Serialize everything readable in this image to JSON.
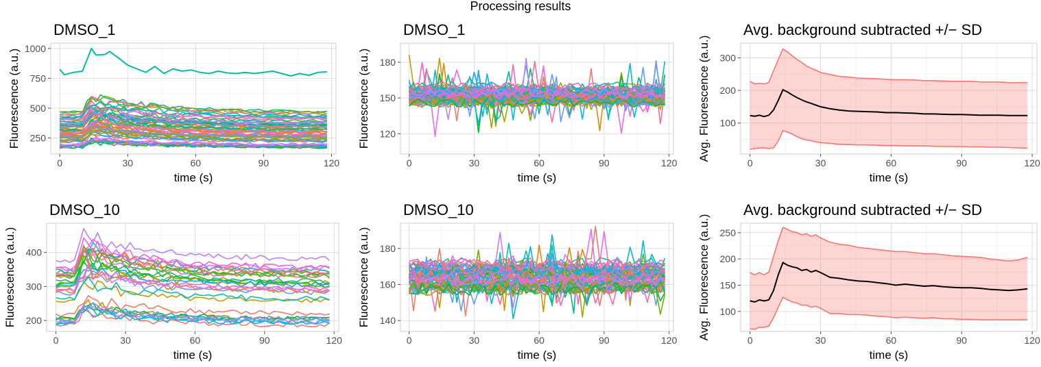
{
  "figure": {
    "title": "Processing results"
  },
  "chart_data": [
    {
      "id": "p1",
      "type": "line",
      "title": "DMSO_1",
      "xlabel": "time (s)",
      "ylabel": "Fluorescence (a.u.)",
      "xlim": [
        -4,
        122
      ],
      "ylim": [
        115,
        1045
      ],
      "xticks": [
        0,
        30,
        60,
        90,
        120
      ],
      "yticks": [
        250,
        500,
        750,
        1000
      ],
      "grid": true,
      "notes_series": "many per-cell traces (~60), colorful hue palette",
      "traces_gen": {
        "n": 60,
        "t_max": 118,
        "dt": 2,
        "base_min": 170,
        "base_max": 470,
        "spike_at": 14,
        "spike_frac": 0.35,
        "noise": 10,
        "seed": 11
      },
      "highlight_series": {
        "name": "",
        "color": "#00BFA0",
        "x": [
          0,
          2,
          6,
          10,
          14,
          16,
          20,
          22,
          26,
          30,
          34,
          38,
          42,
          46,
          50,
          54,
          58,
          62,
          66,
          70,
          74,
          78,
          82,
          86,
          90,
          94,
          98,
          102,
          106,
          110,
          114,
          118
        ],
        "y": [
          825,
          780,
          800,
          810,
          1000,
          945,
          950,
          975,
          920,
          860,
          830,
          800,
          850,
          790,
          830,
          810,
          820,
          800,
          790,
          810,
          795,
          790,
          800,
          790,
          800,
          810,
          790,
          770,
          790,
          775,
          800,
          805
        ]
      }
    },
    {
      "id": "p2",
      "type": "line",
      "title": "DMSO_1",
      "xlabel": "time (s)",
      "ylabel": "Fluorescence (a.u.)",
      "xlim": [
        -4,
        122
      ],
      "ylim": [
        103,
        196
      ],
      "xticks": [
        0,
        30,
        60,
        90,
        120
      ],
      "yticks": [
        120,
        150,
        180
      ],
      "grid": true,
      "notes_series": "background traces (~60) flat around 150 with noise",
      "traces_gen": {
        "n": 60,
        "t_max": 118,
        "dt": 2,
        "base_min": 146,
        "base_max": 160,
        "spike_at": -1,
        "spike_frac": 0,
        "noise": 4,
        "outlier_prob": 0.04,
        "outlier_amp": 28,
        "seed": 23
      }
    },
    {
      "id": "p3",
      "type": "area",
      "title": "Avg. background subtracted +/− SD",
      "xlabel": "time (s)",
      "ylabel": "Avg. Fluorescence (a.u.)",
      "xlim": [
        -4,
        122
      ],
      "ylim": [
        5,
        345
      ],
      "xticks": [
        0,
        30,
        60,
        90,
        120
      ],
      "yticks": [
        100,
        200,
        300
      ],
      "grid": true,
      "band_fill": "#F8766D",
      "line_color": "#000000",
      "x": [
        0,
        2,
        4,
        6,
        8,
        10,
        12,
        14,
        16,
        18,
        20,
        22,
        24,
        26,
        28,
        30,
        34,
        38,
        42,
        46,
        50,
        54,
        58,
        62,
        66,
        70,
        74,
        78,
        82,
        86,
        90,
        94,
        98,
        102,
        106,
        110,
        114,
        118
      ],
      "mean": [
        123,
        121,
        124,
        120,
        124,
        140,
        170,
        202,
        195,
        186,
        178,
        171,
        165,
        160,
        155,
        150,
        144,
        140,
        137,
        136,
        135,
        134,
        132,
        132,
        131,
        130,
        128,
        128,
        127,
        126,
        126,
        125,
        124,
        124,
        124,
        123,
        123,
        123
      ],
      "upper": [
        228,
        220,
        222,
        220,
        225,
        260,
        295,
        327,
        318,
        306,
        295,
        286,
        275,
        268,
        262,
        255,
        249,
        243,
        241,
        238,
        237,
        236,
        234,
        233,
        233,
        232,
        230,
        230,
        229,
        228,
        228,
        228,
        226,
        226,
        226,
        224,
        224,
        224
      ],
      "lower": [
        20,
        22,
        24,
        24,
        22,
        24,
        45,
        77,
        72,
        66,
        58,
        52,
        48,
        46,
        42,
        40,
        38,
        35,
        34,
        33,
        33,
        32,
        31,
        31,
        30,
        30,
        30,
        29,
        28,
        28,
        28,
        27,
        27,
        26,
        26,
        25,
        24,
        23
      ]
    },
    {
      "id": "p4",
      "type": "line",
      "title": "DMSO_10",
      "xlabel": "time (s)",
      "ylabel": "Fluorescence (a.u.)",
      "xlim": [
        -4,
        122
      ],
      "ylim": [
        168,
        486
      ],
      "xticks": [
        0,
        30,
        60,
        90,
        120
      ],
      "yticks": [
        200,
        300,
        400
      ],
      "grid": true,
      "notes_series": "per-cell traces (~30)",
      "traces_gen": {
        "n": 30,
        "t_max": 118,
        "dt": 2,
        "base_min": 185,
        "base_max": 385,
        "spike_at": 12,
        "spike_frac": 0.25,
        "noise": 7,
        "seed": 47
      }
    },
    {
      "id": "p5",
      "type": "line",
      "title": "DMSO_10",
      "xlabel": "time (s)",
      "ylabel": "Fluorescence (a.u.)",
      "xlim": [
        -4,
        122
      ],
      "ylim": [
        134,
        194
      ],
      "xticks": [
        0,
        30,
        60,
        90,
        120
      ],
      "yticks": [
        140,
        160,
        180
      ],
      "grid": true,
      "notes_series": "background traces (~60) flat around 165 with noise",
      "traces_gen": {
        "n": 60,
        "t_max": 118,
        "dt": 2,
        "base_min": 157,
        "base_max": 172,
        "spike_at": -1,
        "spike_frac": 0,
        "noise": 3.5,
        "outlier_prob": 0.05,
        "outlier_amp": 20,
        "seed": 71
      }
    },
    {
      "id": "p6",
      "type": "area",
      "title": "Avg. background subtracted +/− SD",
      "xlabel": "time (s)",
      "ylabel": "Avg. Fluorescence (a.u.)",
      "xlim": [
        -4,
        122
      ],
      "ylim": [
        62,
        268
      ],
      "xticks": [
        0,
        30,
        60,
        90,
        120
      ],
      "yticks": [
        100,
        150,
        200,
        250
      ],
      "grid": true,
      "band_fill": "#F8766D",
      "line_color": "#000000",
      "x": [
        0,
        2,
        4,
        6,
        8,
        10,
        12,
        14,
        16,
        18,
        20,
        22,
        24,
        26,
        28,
        30,
        34,
        38,
        42,
        46,
        50,
        54,
        58,
        62,
        66,
        70,
        74,
        78,
        82,
        86,
        90,
        94,
        98,
        102,
        106,
        110,
        114,
        118
      ],
      "mean": [
        120,
        118,
        122,
        120,
        122,
        140,
        170,
        193,
        188,
        185,
        183,
        178,
        180,
        175,
        178,
        174,
        165,
        163,
        160,
        158,
        157,
        155,
        153,
        150,
        152,
        150,
        148,
        149,
        147,
        146,
        145,
        145,
        144,
        142,
        141,
        140,
        141,
        143
      ],
      "upper": [
        174,
        170,
        174,
        170,
        175,
        205,
        235,
        260,
        256,
        252,
        250,
        246,
        248,
        243,
        246,
        240,
        232,
        228,
        226,
        222,
        220,
        218,
        216,
        214,
        214,
        212,
        210,
        210,
        208,
        206,
        205,
        204,
        203,
        200,
        198,
        196,
        198,
        203
      ],
      "lower": [
        67,
        66,
        70,
        70,
        72,
        88,
        108,
        127,
        122,
        118,
        116,
        112,
        112,
        108,
        110,
        106,
        96,
        96,
        94,
        94,
        93,
        91,
        90,
        88,
        89,
        88,
        87,
        88,
        86,
        86,
        85,
        85,
        84,
        84,
        84,
        84,
        84,
        84
      ]
    }
  ]
}
